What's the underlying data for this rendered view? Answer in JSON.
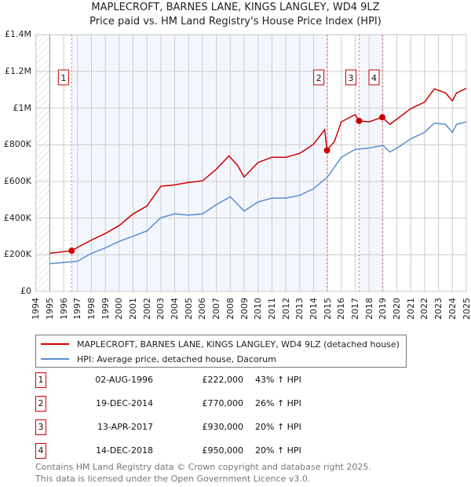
{
  "title_line1": "MAPLECROFT, BARNES LANE, KINGS LANGLEY, WD4 9LZ",
  "title_line2": "Price paid vs. HM Land Registry's House Price Index (HPI)",
  "chart_data": {
    "type": "line",
    "xlim": [
      1994,
      2025
    ],
    "ylim": [
      0,
      1400000
    ],
    "x_ticks": [
      "1994",
      "1995",
      "1996",
      "1997",
      "1998",
      "1999",
      "2000",
      "2001",
      "2002",
      "2003",
      "2004",
      "2005",
      "2006",
      "2007",
      "2008",
      "2009",
      "2010",
      "2011",
      "2012",
      "2013",
      "2014",
      "2015",
      "2016",
      "2017",
      "2018",
      "2019",
      "2020",
      "2021",
      "2022",
      "2023",
      "2024",
      "2025"
    ],
    "y_ticks": [
      {
        "v": 0,
        "label": "£0"
      },
      {
        "v": 200000,
        "label": "£200K"
      },
      {
        "v": 400000,
        "label": "£400K"
      },
      {
        "v": 600000,
        "label": "£600K"
      },
      {
        "v": 800000,
        "label": "£800K"
      },
      {
        "v": 1000000,
        "label": "£1M"
      },
      {
        "v": 1200000,
        "label": "£1.2M"
      },
      {
        "v": 1400000,
        "label": "£1.4M"
      }
    ],
    "grid": true,
    "series": [
      {
        "name": "MAPLECROFT, BARNES LANE, KINGS LANGLEY, WD4 9LZ (detached house)",
        "color": "#cc0000",
        "x": [
          1995,
          1996.58,
          1997,
          1998,
          1999,
          2000,
          2001,
          2002,
          2003,
          2004,
          2005,
          2006,
          2007,
          2007.9,
          2008.5,
          2009,
          2010,
          2011,
          2012,
          2013,
          2014,
          2014.8,
          2014.97,
          2015.5,
          2016,
          2017,
          2017.28,
          2018,
          2018.95,
          2019.5,
          2020,
          2021,
          2022,
          2022.7,
          2023.5,
          2024,
          2024.3,
          2025
        ],
        "y": [
          208000,
          222000,
          240000,
          280000,
          316000,
          359000,
          423000,
          466000,
          574000,
          581000,
          595000,
          603000,
          667000,
          739000,
          690000,
          624000,
          703000,
          732000,
          732000,
          753000,
          803000,
          882000,
          770000,
          818000,
          925000,
          964000,
          930000,
          925000,
          950000,
          911000,
          940000,
          997000,
          1033000,
          1105000,
          1083000,
          1040000,
          1083000,
          1108000
        ]
      },
      {
        "name": "HPI: Average price, detached house, Dacorum",
        "color": "#5b8dd0",
        "x": [
          1995,
          1997,
          1998,
          1999,
          2000,
          2001,
          2002,
          2003,
          2004,
          2005,
          2006,
          2007,
          2008,
          2009,
          2010,
          2011,
          2012,
          2013,
          2014,
          2015,
          2016,
          2017,
          2018,
          2019,
          2019.5,
          2020,
          2021,
          2022,
          2022.7,
          2023.5,
          2024,
          2024.3,
          2025
        ],
        "y": [
          151000,
          165000,
          208000,
          237000,
          273000,
          301000,
          330000,
          402000,
          423000,
          416000,
          423000,
          473000,
          517000,
          438000,
          488000,
          509000,
          509000,
          524000,
          560000,
          624000,
          732000,
          775000,
          782000,
          796000,
          760000,
          782000,
          832000,
          868000,
          918000,
          911000,
          868000,
          911000,
          925000
        ]
      }
    ],
    "sales": [
      {
        "n": "1",
        "x": 1996.58,
        "y": 222000
      },
      {
        "n": "2",
        "x": 2014.97,
        "y": 770000
      },
      {
        "n": "3",
        "x": 2017.28,
        "y": 930000
      },
      {
        "n": "4",
        "x": 2018.95,
        "y": 950000
      }
    ],
    "legend": [
      "MAPLECROFT, BARNES LANE, KINGS LANGLEY, WD4 9LZ (detached house)",
      "HPI: Average price, detached house, Dacorum"
    ],
    "legend_placement": "below"
  },
  "table": [
    {
      "n": "1",
      "date": "02-AUG-1996",
      "price": "£222,000",
      "hpi": "43% ↑ HPI"
    },
    {
      "n": "2",
      "date": "19-DEC-2014",
      "price": "£770,000",
      "hpi": "26% ↑ HPI"
    },
    {
      "n": "3",
      "date": "13-APR-2017",
      "price": "£930,000",
      "hpi": "20% ↑ HPI"
    },
    {
      "n": "4",
      "date": "14-DEC-2018",
      "price": "£950,000",
      "hpi": "20% ↑ HPI"
    }
  ],
  "footer_line1": "Contains HM Land Registry data © Crown copyright and database right 2025.",
  "footer_line2": "This data is licensed under the Open Government Licence v3.0."
}
